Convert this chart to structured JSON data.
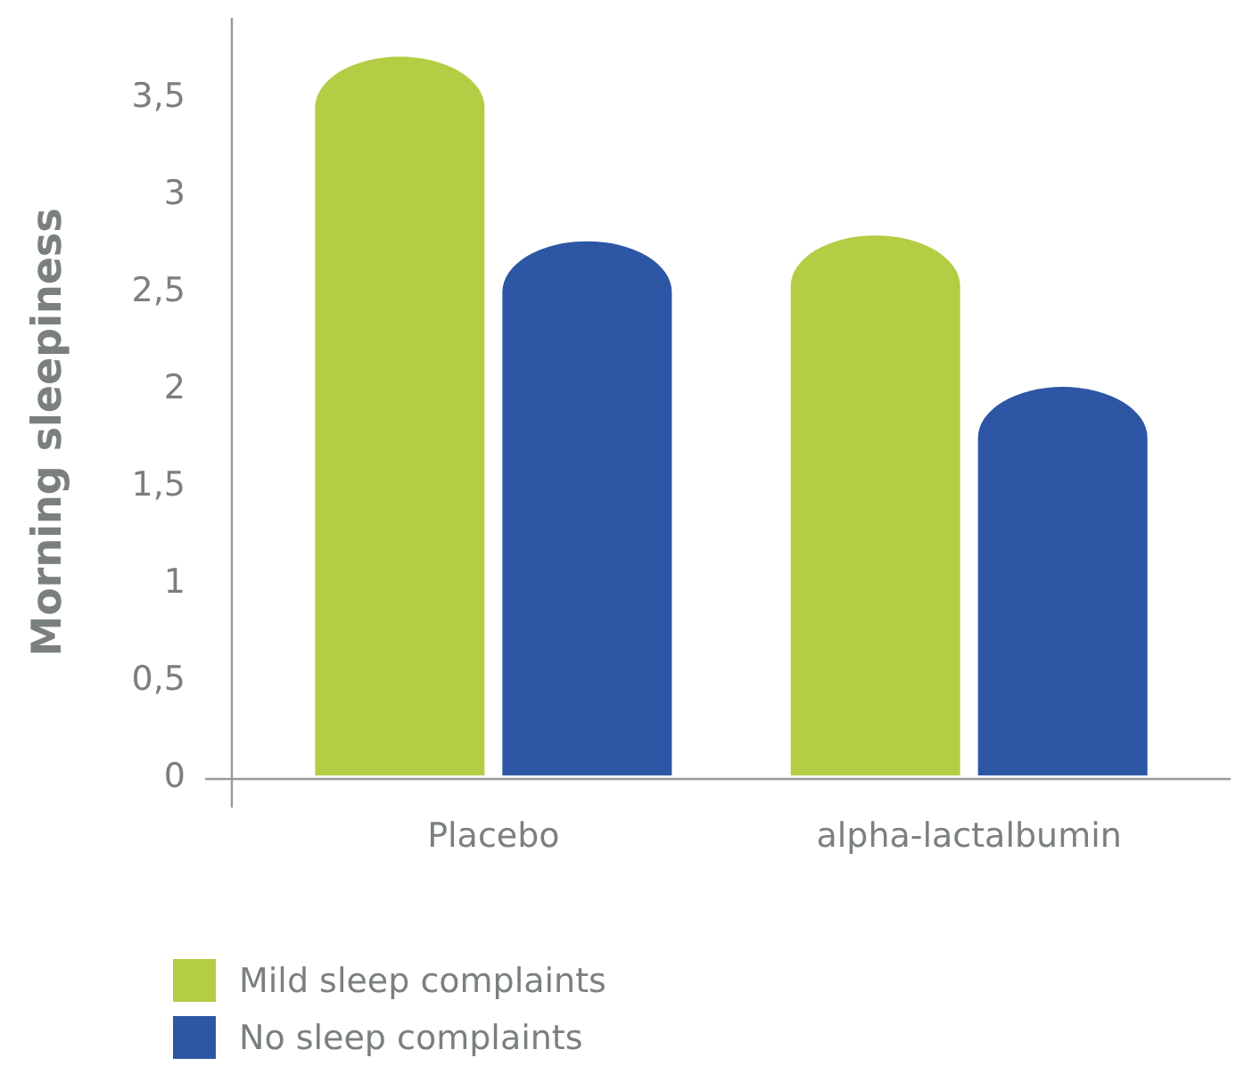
{
  "chart_data": {
    "type": "bar",
    "ylabel": "Morning sleepiness",
    "categories": [
      "Placebo",
      "alpha-lactalbumin"
    ],
    "series": [
      {
        "name": "Mild sleep complaints",
        "color": "#b3cd44",
        "values": [
          3.7,
          2.78
        ]
      },
      {
        "name": "No sleep complaints",
        "color": "#2d57a5",
        "values": [
          2.75,
          2.0
        ]
      }
    ],
    "ylim": [
      0,
      3.9
    ],
    "yticks": [
      0,
      {
        "value": 0.5,
        "label": "0,5"
      },
      1,
      {
        "value": 1.5,
        "label": "1,5"
      },
      2,
      {
        "value": 2.5,
        "label": "2,5"
      },
      3,
      {
        "value": 3.5,
        "label": "3,5"
      }
    ],
    "grid": false,
    "legend": "bottom left"
  }
}
